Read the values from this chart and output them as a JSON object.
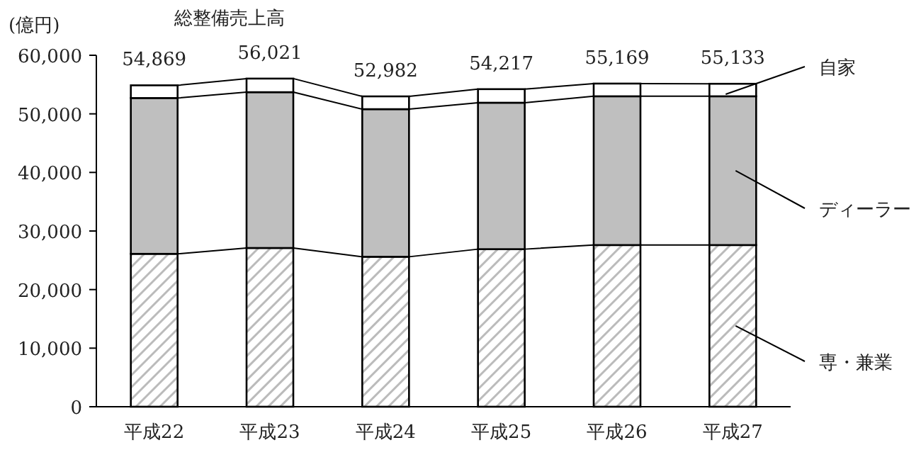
{
  "chart_data": {
    "type": "bar",
    "title": "総整備売上高",
    "ylabel": "(億円)",
    "stacked": true,
    "categories": [
      "平成22",
      "平成23",
      "平成24",
      "平成25",
      "平成26",
      "平成27"
    ],
    "series": [
      {
        "name": "専・兼業",
        "color": "#bbbbbb",
        "values": [
          26100,
          27100,
          25600,
          26900,
          27600,
          27600
        ]
      },
      {
        "name": "ディーラー",
        "color": "#bfbfbf",
        "values": [
          26600,
          26600,
          25200,
          25000,
          25400,
          25400
        ]
      },
      {
        "name": "自家",
        "color": "#ffffff",
        "values": [
          2169,
          2321,
          2182,
          2317,
          2169,
          2133
        ]
      }
    ],
    "totals": [
      "54,869",
      "56,021",
      "52,982",
      "54,217",
      "55,169",
      "55,133"
    ],
    "ylim": [
      0,
      60000
    ],
    "yticks": [
      {
        "value": 0,
        "label": "0"
      },
      {
        "value": 10000,
        "label": "10,000"
      },
      {
        "value": 20000,
        "label": "20,000"
      },
      {
        "value": 30000,
        "label": "30,000"
      },
      {
        "value": 40000,
        "label": "40,000"
      },
      {
        "value": 50000,
        "label": "50,000"
      },
      {
        "value": 60000,
        "label": "60,000"
      }
    ],
    "grid": false,
    "legend": "right"
  }
}
